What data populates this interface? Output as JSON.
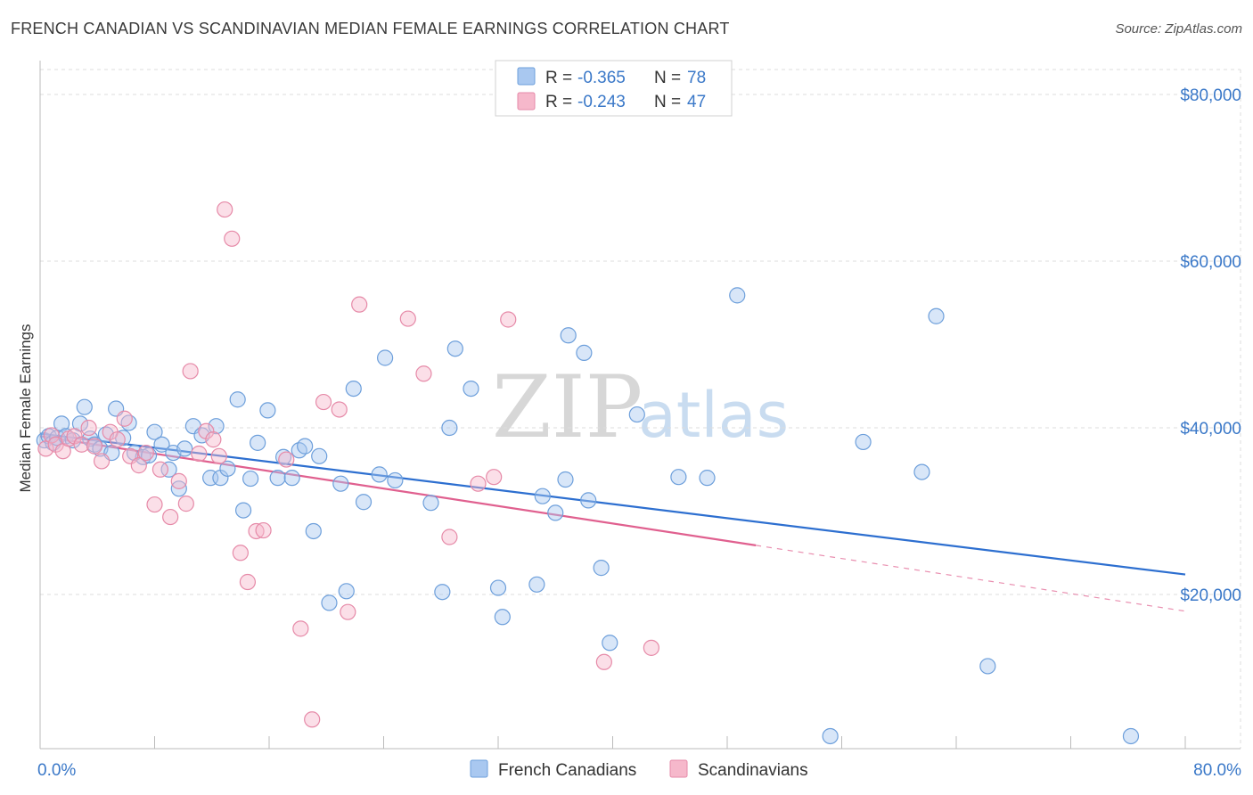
{
  "header": {
    "title": "FRENCH CANADIAN VS SCANDINAVIAN MEDIAN FEMALE EARNINGS CORRELATION CHART",
    "source": "Source: ZipAtlas.com"
  },
  "watermark": {
    "zip": "ZIP",
    "atlas": "atlas"
  },
  "legend": {
    "rows": [
      {
        "r_label": "R =",
        "r_value": "-0.365",
        "n_label": "N =",
        "n_value": "78",
        "color": "#a9c8f0"
      },
      {
        "r_label": "R =",
        "r_value": "-0.243",
        "n_label": "N =",
        "n_value": "47",
        "color": "#f6b8cb"
      }
    ]
  },
  "bottom_legend": [
    {
      "label": "French Canadians",
      "color": "#a9c8f0"
    },
    {
      "label": "Scandinavians",
      "color": "#f6b8cb"
    }
  ],
  "colors": {
    "blue_fill": "#a9c8f0",
    "blue_stroke": "#6d9fdb",
    "blue_line": "#2d6fd0",
    "pink_fill": "#f6b8cb",
    "pink_stroke": "#e68aa8",
    "pink_line": "#e0608f",
    "grid": "#dddddd",
    "tick_label": "#3a78c8"
  },
  "chart_data": {
    "type": "scatter",
    "title": "FRENCH CANADIAN VS SCANDINAVIAN MEDIAN FEMALE EARNINGS CORRELATION CHART",
    "xlabel": "",
    "ylabel": "Median Female Earnings",
    "xlim": [
      0,
      80
    ],
    "ylim": [
      1500,
      83000
    ],
    "x_tick_labels": [
      {
        "value": 0,
        "label": "0.0%"
      },
      {
        "value": 80,
        "label": "80.0%"
      }
    ],
    "y_ticks": [
      {
        "value": 20000,
        "label": "$20,000"
      },
      {
        "value": 40000,
        "label": "$40,000"
      },
      {
        "value": 60000,
        "label": "$60,000"
      },
      {
        "value": 80000,
        "label": "$80,000"
      }
    ],
    "grid": true,
    "legend_position": "top-center",
    "series": [
      {
        "name": "French Canadians",
        "points": [
          [
            0.3,
            38500
          ],
          [
            0.6,
            39000
          ],
          [
            0.9,
            38200
          ],
          [
            1.2,
            38800
          ],
          [
            1.5,
            40500
          ],
          [
            1.8,
            39000
          ],
          [
            2.3,
            38500
          ],
          [
            2.8,
            40500
          ],
          [
            3.1,
            42500
          ],
          [
            3.5,
            38700
          ],
          [
            3.8,
            38000
          ],
          [
            4.2,
            37500
          ],
          [
            4.6,
            39200
          ],
          [
            5.0,
            37000
          ],
          [
            5.3,
            42300
          ],
          [
            5.8,
            38800
          ],
          [
            6.2,
            40600
          ],
          [
            6.6,
            37000
          ],
          [
            7.2,
            36500
          ],
          [
            7.6,
            36700
          ],
          [
            8.0,
            39500
          ],
          [
            8.5,
            38000
          ],
          [
            9.0,
            35000
          ],
          [
            9.3,
            37000
          ],
          [
            9.7,
            32700
          ],
          [
            10.1,
            37500
          ],
          [
            10.7,
            40200
          ],
          [
            11.3,
            39100
          ],
          [
            11.9,
            34000
          ],
          [
            12.3,
            40200
          ],
          [
            12.6,
            34000
          ],
          [
            13.1,
            35100
          ],
          [
            13.8,
            43400
          ],
          [
            14.2,
            30100
          ],
          [
            14.7,
            33900
          ],
          [
            15.2,
            38200
          ],
          [
            15.9,
            42100
          ],
          [
            16.6,
            34000
          ],
          [
            17.0,
            36500
          ],
          [
            17.6,
            34000
          ],
          [
            18.1,
            37300
          ],
          [
            18.5,
            37800
          ],
          [
            19.1,
            27600
          ],
          [
            19.5,
            36600
          ],
          [
            20.2,
            19000
          ],
          [
            21.0,
            33300
          ],
          [
            21.4,
            20400
          ],
          [
            21.9,
            44700
          ],
          [
            22.6,
            31100
          ],
          [
            23.7,
            34400
          ],
          [
            24.1,
            48400
          ],
          [
            24.8,
            33700
          ],
          [
            27.3,
            31000
          ],
          [
            28.1,
            20300
          ],
          [
            28.6,
            40000
          ],
          [
            29.0,
            49500
          ],
          [
            30.1,
            44700
          ],
          [
            32.0,
            20800
          ],
          [
            32.3,
            17300
          ],
          [
            34.7,
            21200
          ],
          [
            35.1,
            31800
          ],
          [
            36.0,
            29800
          ],
          [
            36.7,
            33800
          ],
          [
            36.9,
            51100
          ],
          [
            38.0,
            49000
          ],
          [
            38.3,
            31300
          ],
          [
            39.2,
            23200
          ],
          [
            39.8,
            14200
          ],
          [
            41.7,
            41600
          ],
          [
            44.6,
            34100
          ],
          [
            46.6,
            34000
          ],
          [
            48.7,
            55900
          ],
          [
            55.2,
            3000
          ],
          [
            57.5,
            38300
          ],
          [
            61.6,
            34700
          ],
          [
            62.6,
            53400
          ],
          [
            66.2,
            11400
          ],
          [
            76.2,
            3000
          ]
        ],
        "trend": {
          "x_start": 0,
          "y_start": 39300,
          "x_end": 80,
          "y_end": 22400
        }
      },
      {
        "name": "Scandinavians",
        "points": [
          [
            0.4,
            37500
          ],
          [
            0.8,
            39100
          ],
          [
            1.1,
            38000
          ],
          [
            1.6,
            37200
          ],
          [
            2.0,
            38700
          ],
          [
            2.4,
            39000
          ],
          [
            2.9,
            38000
          ],
          [
            3.4,
            40000
          ],
          [
            3.8,
            37800
          ],
          [
            4.3,
            36000
          ],
          [
            4.9,
            39500
          ],
          [
            5.4,
            38600
          ],
          [
            5.9,
            41100
          ],
          [
            6.3,
            36600
          ],
          [
            6.9,
            35500
          ],
          [
            7.4,
            37000
          ],
          [
            8.0,
            30800
          ],
          [
            8.4,
            35000
          ],
          [
            9.1,
            29300
          ],
          [
            9.7,
            33600
          ],
          [
            10.2,
            30900
          ],
          [
            10.5,
            46800
          ],
          [
            11.1,
            36900
          ],
          [
            11.6,
            39600
          ],
          [
            12.1,
            38600
          ],
          [
            12.5,
            36600
          ],
          [
            12.9,
            66200
          ],
          [
            13.4,
            62700
          ],
          [
            14.0,
            25000
          ],
          [
            14.5,
            21500
          ],
          [
            15.1,
            27600
          ],
          [
            15.6,
            27700
          ],
          [
            17.2,
            36200
          ],
          [
            18.2,
            15900
          ],
          [
            19.0,
            5000
          ],
          [
            19.8,
            43100
          ],
          [
            20.9,
            42200
          ],
          [
            21.5,
            17900
          ],
          [
            22.3,
            54800
          ],
          [
            25.7,
            53100
          ],
          [
            26.8,
            46500
          ],
          [
            28.6,
            26900
          ],
          [
            30.6,
            33300
          ],
          [
            31.7,
            34100
          ],
          [
            32.7,
            53000
          ],
          [
            39.4,
            11900
          ],
          [
            42.7,
            13600
          ]
        ],
        "trend": {
          "x_start": 0,
          "y_start": 39000,
          "x_end": 50,
          "y_end": 25900,
          "dash_x_end": 80,
          "dash_y_end": 18000
        }
      }
    ]
  }
}
